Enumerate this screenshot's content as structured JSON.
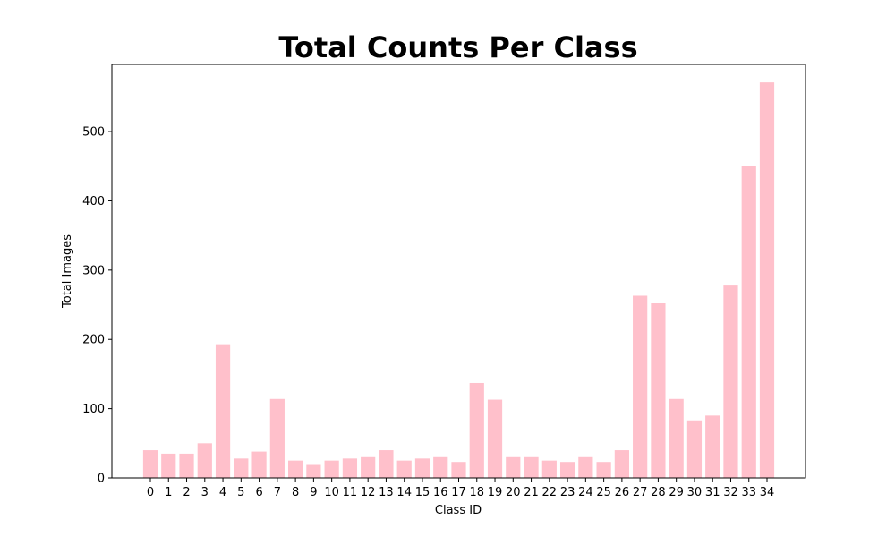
{
  "chart_data": {
    "type": "bar",
    "title": "Total Counts Per Class",
    "xlabel": "Class ID",
    "ylabel": "Total Images",
    "categories": [
      "0",
      "1",
      "2",
      "3",
      "4",
      "5",
      "6",
      "7",
      "8",
      "9",
      "10",
      "11",
      "12",
      "13",
      "14",
      "15",
      "16",
      "17",
      "18",
      "19",
      "20",
      "21",
      "22",
      "23",
      "24",
      "25",
      "26",
      "27",
      "28",
      "29",
      "30",
      "31",
      "32",
      "33",
      "34"
    ],
    "values": [
      40,
      35,
      35,
      50,
      193,
      28,
      38,
      114,
      25,
      20,
      25,
      28,
      30,
      40,
      25,
      28,
      30,
      23,
      137,
      113,
      30,
      30,
      25,
      23,
      30,
      23,
      40,
      263,
      252,
      114,
      83,
      90,
      279,
      450,
      571
    ],
    "ylim": [
      0,
      597
    ],
    "yticks": [
      0,
      100,
      200,
      300,
      400,
      500
    ],
    "grid": false,
    "legend": "none",
    "bar_color": "#ffc0cb"
  }
}
